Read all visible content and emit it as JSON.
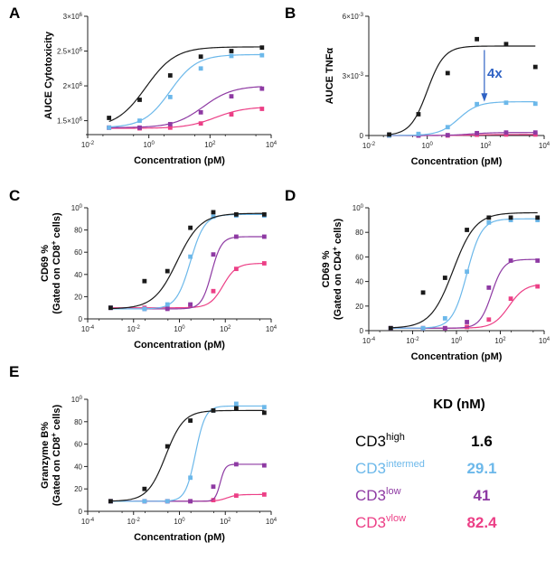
{
  "colors": {
    "CD3high": "#1a1a1a",
    "CD3intermed": "#6cb8ea",
    "CD3low": "#8e3aa3",
    "CD3vlow": "#ec3f86",
    "annotation": "#2f62c4"
  },
  "chart_data": [
    {
      "panel": "A",
      "type": "line",
      "xlabel": "Concentration (pM)",
      "ylabel": "AUCE Cytotoxicity",
      "xscale": "log",
      "xlim": [
        0.01,
        10000
      ],
      "ylim": [
        1300000,
        3000000
      ],
      "xticks": [
        0.01,
        1,
        100,
        10000
      ],
      "xtick_labels": [
        "10-2",
        "100",
        "102",
        "104"
      ],
      "yticks": [
        1500000,
        2000000,
        2500000,
        3000000
      ],
      "ytick_labels": [
        "1.5×106",
        "2×106",
        "2.5×106",
        "3×106"
      ],
      "x": [
        0.05,
        0.5,
        5,
        50,
        500,
        5000
      ],
      "series": [
        {
          "key": "CD3high",
          "values": [
            1540000,
            1800000,
            2150000,
            2420000,
            2500000,
            2550000
          ]
        },
        {
          "key": "CD3intermed",
          "values": [
            1400000,
            1500000,
            1840000,
            2250000,
            2430000,
            2440000
          ]
        },
        {
          "key": "CD3low",
          "values": [
            1400000,
            1400000,
            1450000,
            1620000,
            1850000,
            1960000
          ]
        },
        {
          "key": "CD3vlow",
          "values": [
            1400000,
            1390000,
            1400000,
            1460000,
            1590000,
            1670000
          ]
        }
      ]
    },
    {
      "panel": "B",
      "type": "line",
      "xlabel": "Concentration (pM)",
      "ylabel": "AUCE TNFα",
      "xscale": "log",
      "xlim": [
        0.01,
        10000
      ],
      "ylim": [
        0,
        0.006
      ],
      "xticks": [
        0.01,
        1,
        100,
        10000
      ],
      "xtick_labels": [
        "10-2",
        "100",
        "102",
        "104"
      ],
      "yticks": [
        0,
        0.003,
        0.006
      ],
      "ytick_labels": [
        "0",
        "3×10-3",
        "6×10-3"
      ],
      "x": [
        0.05,
        0.5,
        5,
        50,
        500,
        5000
      ],
      "series": [
        {
          "key": "CD3high",
          "values": [
            5e-05,
            0.00107,
            0.00314,
            0.00485,
            0.0046,
            0.00345
          ]
        },
        {
          "key": "CD3intermed",
          "values": [
            0.0,
            8e-05,
            0.00042,
            0.00158,
            0.00165,
            0.0016
          ]
        },
        {
          "key": "CD3low",
          "values": [
            0.0,
            0.0,
            2e-05,
            0.00012,
            0.00015,
            0.00015
          ]
        },
        {
          "key": "CD3vlow",
          "values": [
            0.0,
            0.0,
            0.0,
            4e-05,
            5e-05,
            5e-05
          ]
        }
      ],
      "annotation": "4x"
    },
    {
      "panel": "C",
      "type": "line",
      "xlabel": "Concentration (pM)",
      "ylabel_line1": "CD69 %",
      "ylabel_line2": "(Gated on CD8+ cells)",
      "xscale": "log",
      "xlim": [
        0.0001,
        10000
      ],
      "ylim": [
        0,
        100
      ],
      "xticks": [
        0.0001,
        0.01,
        1,
        100,
        10000
      ],
      "xtick_labels": [
        "10-4",
        "10-2",
        "100",
        "102",
        "104"
      ],
      "yticks": [
        0,
        20,
        40,
        60,
        80,
        100
      ],
      "ytick_labels": [
        "0",
        "20",
        "40",
        "60",
        "80",
        "100"
      ],
      "x": [
        0.001,
        0.03,
        0.3,
        3,
        30,
        300,
        5000
      ],
      "series": [
        {
          "key": "CD3high",
          "values": [
            10,
            34,
            43,
            82,
            96,
            94,
            94
          ]
        },
        {
          "key": "CD3intermed",
          "values": [
            10,
            9,
            13,
            56,
            92,
            93,
            93
          ]
        },
        {
          "key": "CD3low",
          "values": [
            10,
            9,
            9,
            13,
            58,
            74,
            74
          ]
        },
        {
          "key": "CD3vlow",
          "values": [
            10,
            10,
            10,
            12,
            25,
            45,
            50
          ]
        }
      ]
    },
    {
      "panel": "D",
      "type": "line",
      "xlabel": "Concentration (pM)",
      "ylabel_line1": "CD69 %",
      "ylabel_line2": "(Gated on CD4+ cells)",
      "xscale": "log",
      "xlim": [
        0.0001,
        10000
      ],
      "ylim": [
        0,
        100
      ],
      "xticks": [
        0.0001,
        0.01,
        1,
        100,
        10000
      ],
      "xtick_labels": [
        "10-4",
        "10-2",
        "100",
        "102",
        "104"
      ],
      "yticks": [
        0,
        20,
        40,
        60,
        80,
        100
      ],
      "ytick_labels": [
        "0",
        "20",
        "40",
        "60",
        "80",
        "100"
      ],
      "x": [
        0.001,
        0.03,
        0.3,
        3,
        30,
        300,
        5000
      ],
      "series": [
        {
          "key": "CD3high",
          "values": [
            2,
            31,
            43,
            82,
            92,
            92,
            92
          ]
        },
        {
          "key": "CD3intermed",
          "values": [
            2,
            2,
            10,
            48,
            88,
            90,
            90
          ]
        },
        {
          "key": "CD3low",
          "values": [
            2,
            2,
            2,
            7,
            35,
            57,
            57
          ]
        },
        {
          "key": "CD3vlow",
          "values": [
            2,
            2,
            2,
            3,
            9,
            26,
            36
          ]
        }
      ]
    },
    {
      "panel": "E",
      "type": "line",
      "xlabel": "Concentration (pM)",
      "ylabel_line1": "Granzyme B%",
      "ylabel_line2": "(Gated on CD8+ cells)",
      "xscale": "log",
      "xlim": [
        0.0001,
        10000
      ],
      "ylim": [
        0,
        100
      ],
      "xticks": [
        0.0001,
        0.01,
        1,
        100,
        10000
      ],
      "xtick_labels": [
        "10-4",
        "10-2",
        "100",
        "102",
        "104"
      ],
      "yticks": [
        0,
        20,
        40,
        60,
        80,
        100
      ],
      "ytick_labels": [
        "0",
        "20",
        "40",
        "60",
        "80",
        "100"
      ],
      "x": [
        0.001,
        0.03,
        0.3,
        3,
        30,
        300,
        5000
      ],
      "series": [
        {
          "key": "CD3high",
          "values": [
            9,
            20,
            58,
            81,
            90,
            92,
            88
          ]
        },
        {
          "key": "CD3intermed",
          "values": [
            9,
            9,
            9,
            30,
            90,
            96,
            93
          ]
        },
        {
          "key": "CD3low",
          "values": [
            9,
            9,
            9,
            9,
            22,
            42,
            41
          ]
        },
        {
          "key": "CD3vlow",
          "values": [
            9,
            9,
            9,
            9,
            10,
            14,
            15
          ]
        }
      ]
    }
  ],
  "kd_table": {
    "header": "KD (nM)",
    "rows": [
      {
        "key": "CD3high",
        "base": "CD3",
        "sup": "high",
        "value": "1.6"
      },
      {
        "key": "CD3intermed",
        "base": "CD3",
        "sup": "intermed",
        "value": "29.1"
      },
      {
        "key": "CD3low",
        "base": "CD3",
        "sup": "low",
        "value": "41"
      },
      {
        "key": "CD3vlow",
        "base": "CD3",
        "sup": "vlow",
        "value": "82.4"
      }
    ]
  }
}
